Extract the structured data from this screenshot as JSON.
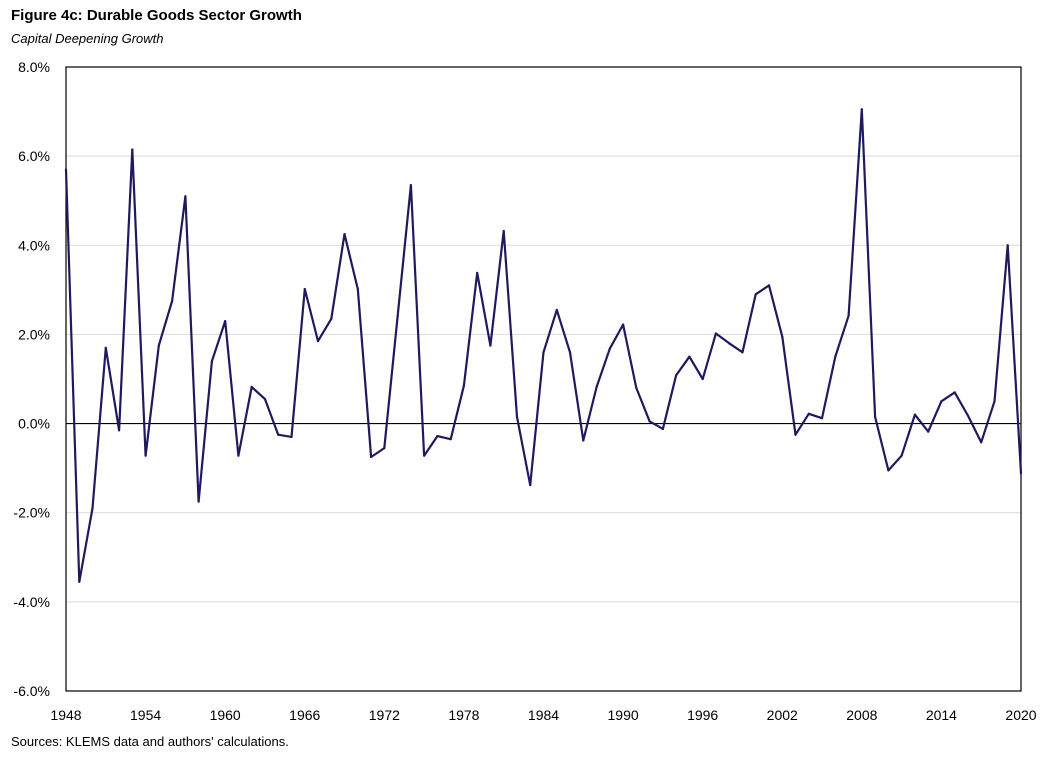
{
  "title": "Figure 4c: Durable Goods Sector Growth",
  "subtitle": "Capital Deepening Growth",
  "source": "Sources: KLEMS data and authors' calculations.",
  "chart_data": {
    "type": "line",
    "title": "Figure 4c: Durable Goods Sector Growth",
    "subtitle": "Capital Deepening Growth",
    "xlabel": "",
    "ylabel": "",
    "xlim": [
      1948,
      2020
    ],
    "ylim": [
      -6.0,
      8.0
    ],
    "y_unit": "%",
    "grid": true,
    "x_ticks": [
      "1948",
      "1954",
      "1960",
      "1966",
      "1972",
      "1978",
      "1984",
      "1990",
      "1996",
      "2002",
      "2008",
      "2014",
      "2020"
    ],
    "y_ticks": [
      "8.0%",
      "6.0%",
      "4.0%",
      "2.0%",
      "0.0%",
      "-2.0%",
      "-4.0%",
      "-6.0%"
    ],
    "line_color": "#1f1a5e",
    "series": [
      {
        "x": [
          1948,
          1949,
          1950,
          1951,
          1952,
          1953,
          1954,
          1955,
          1956,
          1957,
          1958,
          1959,
          1960,
          1961,
          1962,
          1963,
          1964,
          1965,
          1966,
          1967,
          1968,
          1969,
          1970,
          1971,
          1972,
          1973,
          1974,
          1975,
          1976,
          1977,
          1978,
          1979,
          1980,
          1981,
          1982,
          1983,
          1984,
          1985,
          1986,
          1987,
          1988,
          1989,
          1990,
          1991,
          1992,
          1993,
          1994,
          1995,
          1996,
          1997,
          1998,
          1999,
          2000,
          2001,
          2002,
          2003,
          2004,
          2005,
          2006,
          2007,
          2008,
          2009,
          2010,
          2011,
          2012,
          2013,
          2014,
          2015,
          2016,
          2017,
          2018,
          2019,
          2020
        ],
        "values": [
          5.7,
          -3.55,
          -1.9,
          1.7,
          -0.15,
          6.15,
          -0.72,
          1.75,
          2.75,
          5.1,
          -1.75,
          1.4,
          2.3,
          -0.72,
          0.82,
          0.55,
          -0.25,
          -0.3,
          3.02,
          1.85,
          2.35,
          4.25,
          3.02,
          -0.75,
          -0.55,
          2.4,
          5.35,
          -0.72,
          -0.28,
          -0.35,
          0.85,
          3.38,
          1.75,
          4.32,
          0.15,
          -1.38,
          1.6,
          2.55,
          1.6,
          -0.38,
          0.82,
          1.68,
          2.22,
          0.8,
          0.05,
          -0.12,
          1.08,
          1.5,
          1.0,
          2.02,
          1.8,
          1.6,
          2.9,
          3.1,
          1.95,
          -0.25,
          0.22,
          0.12,
          1.5,
          2.42,
          7.05,
          0.15,
          -1.05,
          -0.72,
          0.2,
          -0.18,
          0.5,
          0.7,
          0.18,
          -0.42,
          0.5,
          4.0,
          -1.12
        ]
      }
    ]
  }
}
